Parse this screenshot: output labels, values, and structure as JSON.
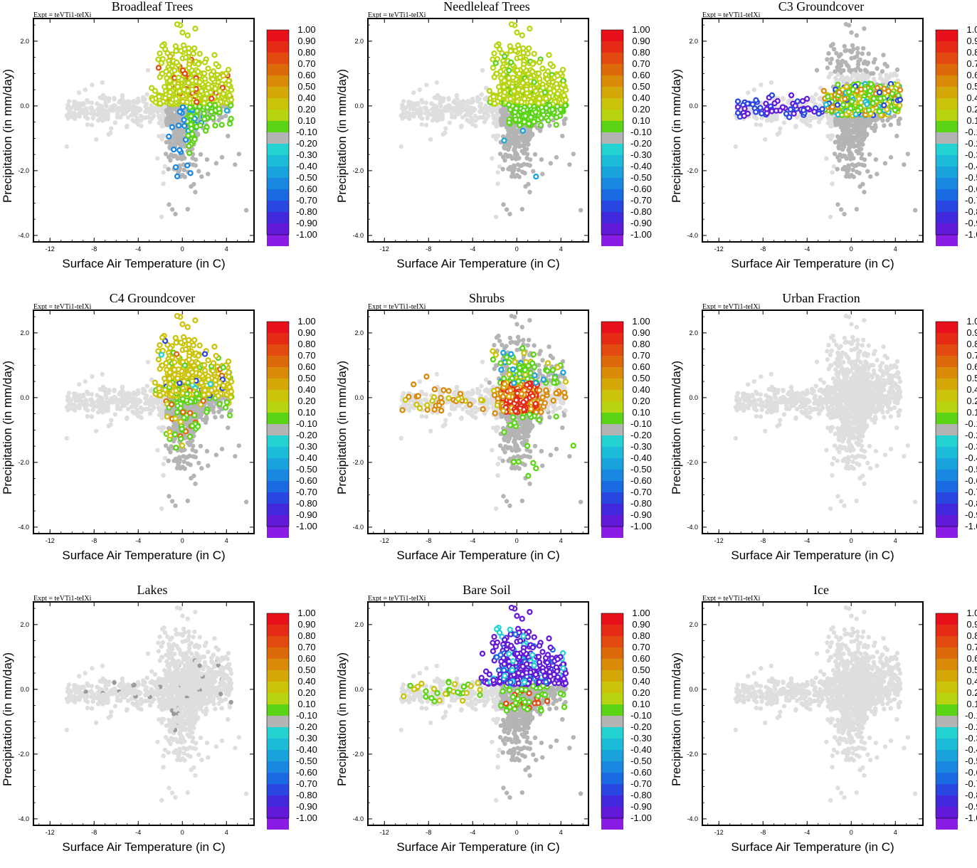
{
  "figure": {
    "expt_label": "Expt = teVTi1-teIXi",
    "xlabel": "Surface Air Temperature (in C)",
    "ylabel": "Precipitation (in mm/day)",
    "x_ticks": [
      -12,
      -8,
      -4,
      0,
      4
    ],
    "x_tick_labels": [
      "-12",
      "-8",
      "-4",
      "0",
      "4"
    ],
    "y_ticks": [
      2.0,
      0.0,
      -2.0,
      -4.0
    ],
    "y_tick_labels": [
      "2.0",
      "0.0",
      "-2.0",
      "-4.0"
    ],
    "xlim": [
      -13.5,
      6.5
    ],
    "ylim": [
      -4.2,
      2.7
    ],
    "colorbar": {
      "labels": [
        "1.00",
        "0.90",
        "0.80",
        "0.70",
        "0.60",
        "0.50",
        "0.40",
        "0.20",
        "0.10",
        "-0.10",
        "-0.20",
        "-0.30",
        "-0.40",
        "-0.50",
        "-0.60",
        "-0.70",
        "-0.80",
        "-0.90",
        "-1.00"
      ],
      "colors": [
        "#e8101a",
        "#e52a16",
        "#e24a10",
        "#dd6a0a",
        "#d88a08",
        "#d4a808",
        "#cbc20a",
        "#b8d410",
        "#5ad414",
        "#b4b4b4",
        "#24d2d2",
        "#1cbcd8",
        "#1aa2dc",
        "#1a88e0",
        "#1a6ae2",
        "#2a46e0",
        "#4228dc",
        "#621ad8",
        "#8a1ce6"
      ]
    }
  },
  "chart_data": [
    {
      "type": "scatter",
      "title": "Broadleaf Trees",
      "xlabel": "Surface Air Temperature (in C)",
      "ylabel": "Precipitation (in mm/day)",
      "xlim": [
        -13.5,
        6.5
      ],
      "ylim": [
        -4.2,
        2.7
      ],
      "pattern": "broadleaf"
    },
    {
      "type": "scatter",
      "title": "Needleleaf Trees",
      "xlabel": "Surface Air Temperature (in C)",
      "ylabel": "Precipitation (in mm/day)",
      "xlim": [
        -13.5,
        6.5
      ],
      "ylim": [
        -4.2,
        2.7
      ],
      "pattern": "needleleaf"
    },
    {
      "type": "scatter",
      "title": "C3 Groundcover",
      "xlabel": "Surface Air Temperature (in C)",
      "ylabel": "Precipitation (in mm/day)",
      "xlim": [
        -13.5,
        6.5
      ],
      "ylim": [
        -4.2,
        2.7
      ],
      "pattern": "c3"
    },
    {
      "type": "scatter",
      "title": "C4 Groundcover",
      "xlabel": "Surface Air Temperature (in C)",
      "ylabel": "Precipitation (in mm/day)",
      "xlim": [
        -13.5,
        6.5
      ],
      "ylim": [
        -4.2,
        2.7
      ],
      "pattern": "c4"
    },
    {
      "type": "scatter",
      "title": "Shrubs",
      "xlabel": "Surface Air Temperature (in C)",
      "ylabel": "Precipitation (in mm/day)",
      "xlim": [
        -13.5,
        6.5
      ],
      "ylim": [
        -4.2,
        2.7
      ],
      "pattern": "shrubs"
    },
    {
      "type": "scatter",
      "title": "Urban Fraction",
      "xlabel": "Surface Air Temperature (in C)",
      "ylabel": "Precipitation (in mm/day)",
      "xlim": [
        -13.5,
        6.5
      ],
      "ylim": [
        -4.2,
        2.7
      ],
      "pattern": "none"
    },
    {
      "type": "scatter",
      "title": "Lakes",
      "xlabel": "Surface Air Temperature (in C)",
      "ylabel": "Precipitation (in mm/day)",
      "xlim": [
        -13.5,
        6.5
      ],
      "ylim": [
        -4.2,
        2.7
      ],
      "pattern": "lakes"
    },
    {
      "type": "scatter",
      "title": "Bare Soil",
      "xlabel": "Surface Air Temperature (in C)",
      "ylabel": "Precipitation (in mm/day)",
      "xlim": [
        -13.5,
        6.5
      ],
      "ylim": [
        -4.2,
        2.7
      ],
      "pattern": "baresoil"
    },
    {
      "type": "scatter",
      "title": "Ice",
      "xlabel": "Surface Air Temperature (in C)",
      "ylabel": "Precipitation (in mm/day)",
      "xlim": [
        -13.5,
        6.5
      ],
      "ylim": [
        -4.2,
        2.7
      ],
      "pattern": "none"
    }
  ]
}
